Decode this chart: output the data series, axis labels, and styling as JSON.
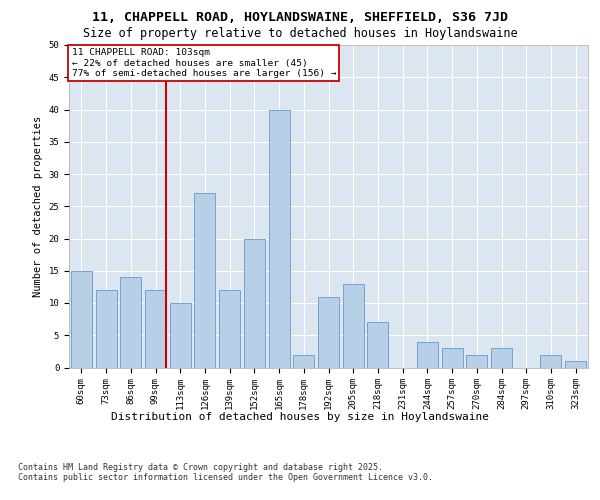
{
  "title1": "11, CHAPPELL ROAD, HOYLANDSWAINE, SHEFFIELD, S36 7JD",
  "title2": "Size of property relative to detached houses in Hoylandswaine",
  "xlabel": "Distribution of detached houses by size in Hoylandswaine",
  "ylabel": "Number of detached properties",
  "categories": [
    "60sqm",
    "73sqm",
    "86sqm",
    "99sqm",
    "113sqm",
    "126sqm",
    "139sqm",
    "152sqm",
    "165sqm",
    "178sqm",
    "192sqm",
    "205sqm",
    "218sqm",
    "231sqm",
    "244sqm",
    "257sqm",
    "270sqm",
    "284sqm",
    "297sqm",
    "310sqm",
    "323sqm"
  ],
  "values": [
    15,
    12,
    14,
    12,
    10,
    27,
    12,
    20,
    40,
    2,
    11,
    13,
    7,
    0,
    4,
    3,
    2,
    3,
    0,
    2,
    1
  ],
  "bar_color": "#b8cfe8",
  "bar_edge_color": "#6699cc",
  "vline_color": "#cc0000",
  "vline_pos": 3.42,
  "annotation_line1": "11 CHAPPELL ROAD: 103sqm",
  "annotation_line2": "← 22% of detached houses are smaller (45)",
  "annotation_line3": "77% of semi-detached houses are larger (156) →",
  "ylim_max": 50,
  "yticks": [
    0,
    5,
    10,
    15,
    20,
    25,
    30,
    35,
    40,
    45,
    50
  ],
  "bg_color": "#dce6f1",
  "footer_text": "Contains HM Land Registry data © Crown copyright and database right 2025.\nContains public sector information licensed under the Open Government Licence v3.0.",
  "title1_fontsize": 9.5,
  "title2_fontsize": 8.5,
  "ylabel_fontsize": 7.5,
  "xlabel_fontsize": 8,
  "tick_fontsize": 6.5,
  "annot_fontsize": 6.8,
  "footer_fontsize": 6.0
}
